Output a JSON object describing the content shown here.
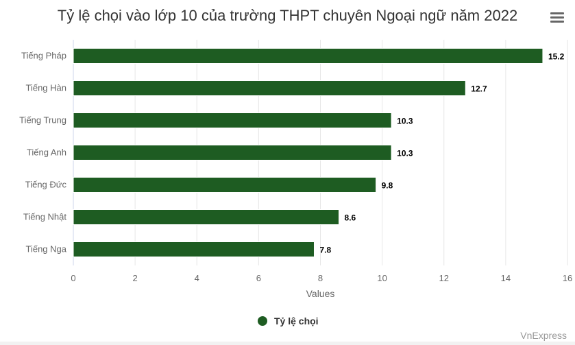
{
  "chart_data": {
    "type": "bar",
    "orientation": "horizontal",
    "title": "Tỷ lệ chọi vào lớp 10 của trường THPT chuyên Ngoại ngữ năm 2022",
    "categories": [
      "Tiếng Pháp",
      "Tiếng Hàn",
      "Tiếng Trung",
      "Tiếng Anh",
      "Tiếng Đức",
      "Tiếng Nhật",
      "Tiếng Nga"
    ],
    "series": [
      {
        "name": "Tỷ lệ chọi",
        "values": [
          15.2,
          12.7,
          10.3,
          10.3,
          9.8,
          8.6,
          7.8
        ],
        "color": "#1e5c22"
      }
    ],
    "data_labels": [
      "15.2",
      "12.7",
      "10.3",
      "10.3",
      "9.8",
      "8.6",
      "7.8"
    ],
    "xlabel": "Values",
    "xlim": [
      0,
      16
    ],
    "xticks": [
      "0",
      "2",
      "4",
      "6",
      "8",
      "10",
      "12",
      "14",
      "16"
    ],
    "grid": true,
    "legend": "bottom-center"
  },
  "credit": "VnExpress",
  "menu_icon": "hamburger-menu-icon"
}
